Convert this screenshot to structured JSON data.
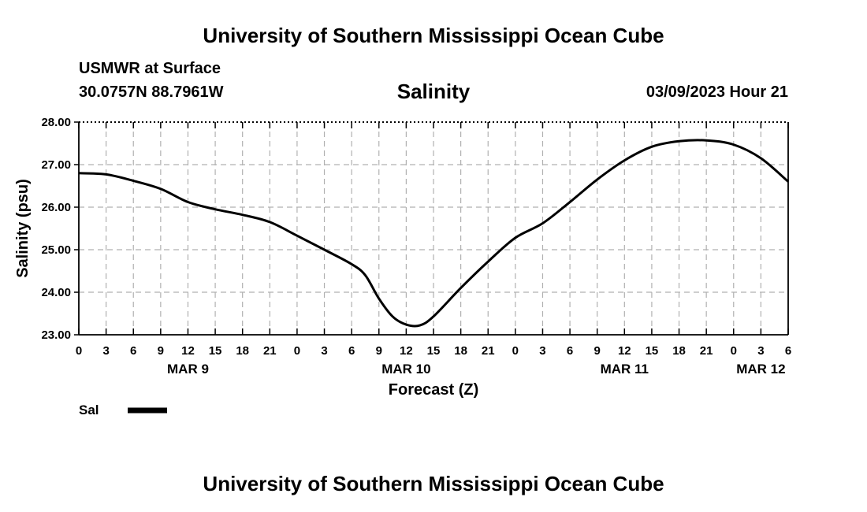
{
  "header": {
    "title": "University of Southern Mississippi Ocean Cube",
    "station": "USMWR at Surface",
    "coords": "30.0757N  88.7961W",
    "datetime": "03/09/2023 Hour 21"
  },
  "footer": {
    "title": "University of Southern Mississippi Ocean Cube"
  },
  "chart_data": {
    "type": "line",
    "title": "Salinity",
    "xlabel": "Forecast (Z)",
    "ylabel": "Salinity (psu)",
    "ylim": [
      23.0,
      28.0
    ],
    "yticks": [
      "23.00",
      "24.00",
      "25.00",
      "26.00",
      "27.00",
      "28.00"
    ],
    "xlim": [
      0,
      78
    ],
    "xtick_labels": [
      "0",
      "3",
      "6",
      "9",
      "12",
      "15",
      "18",
      "21",
      "0",
      "3",
      "6",
      "9",
      "12",
      "15",
      "18",
      "21",
      "0",
      "3",
      "6",
      "9",
      "12",
      "15",
      "18",
      "21",
      "0",
      "3",
      "6"
    ],
    "date_labels": [
      {
        "label": "MAR 9",
        "hour": 12
      },
      {
        "label": "MAR 10",
        "hour": 36
      },
      {
        "label": "MAR 11",
        "hour": 60
      },
      {
        "label": "MAR 12",
        "hour": 75
      }
    ],
    "grid": true,
    "series": [
      {
        "name": "Sal",
        "color": "#000000",
        "points": [
          [
            0,
            26.8
          ],
          [
            3,
            26.77
          ],
          [
            6,
            26.62
          ],
          [
            9,
            26.43
          ],
          [
            12,
            26.12
          ],
          [
            15,
            25.95
          ],
          [
            18,
            25.82
          ],
          [
            21,
            25.65
          ],
          [
            24,
            25.33
          ],
          [
            27,
            25.0
          ],
          [
            30,
            24.66
          ],
          [
            31.5,
            24.4
          ],
          [
            33,
            23.85
          ],
          [
            34.5,
            23.43
          ],
          [
            36,
            23.24
          ],
          [
            37.5,
            23.22
          ],
          [
            39,
            23.43
          ],
          [
            42,
            24.1
          ],
          [
            45,
            24.72
          ],
          [
            48,
            25.28
          ],
          [
            51,
            25.62
          ],
          [
            54,
            26.12
          ],
          [
            57,
            26.65
          ],
          [
            60,
            27.1
          ],
          [
            63,
            27.42
          ],
          [
            66,
            27.55
          ],
          [
            69,
            27.57
          ],
          [
            72,
            27.47
          ],
          [
            75,
            27.15
          ],
          [
            78,
            26.6
          ]
        ]
      }
    ],
    "legend": [
      {
        "label": "Sal",
        "color": "#000000"
      }
    ]
  }
}
